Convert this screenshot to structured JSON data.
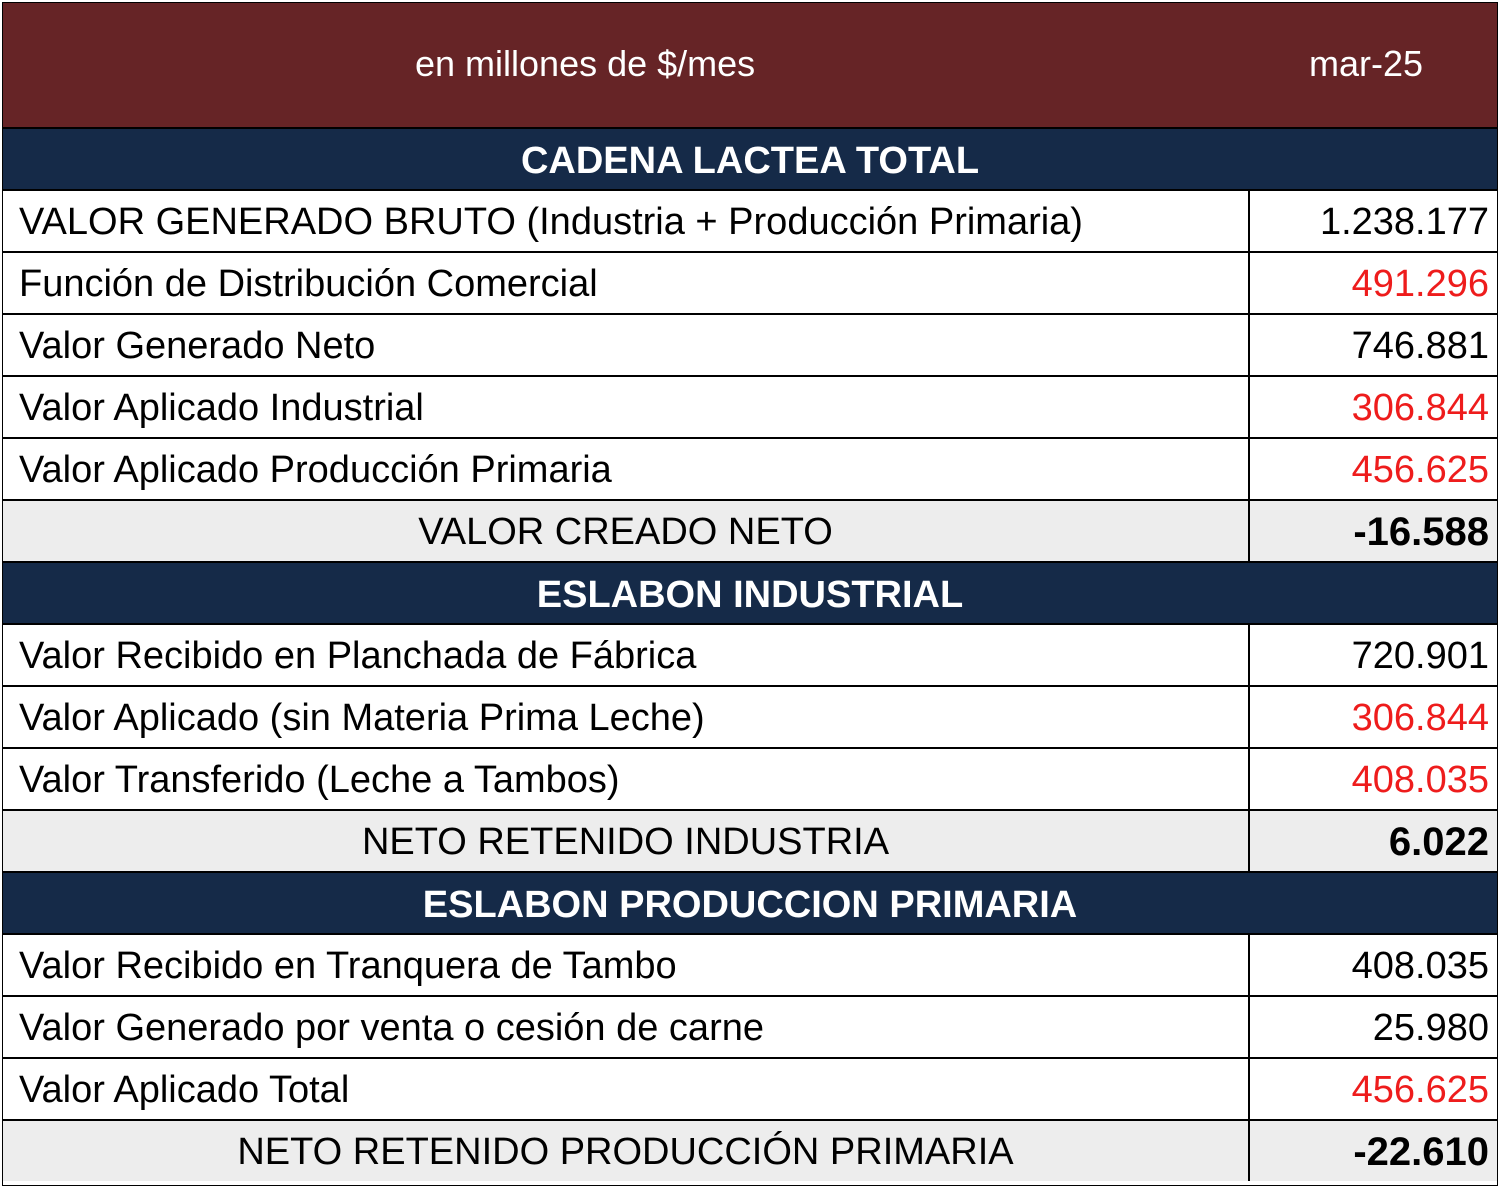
{
  "header": {
    "unit_label": "en millones de $/mes",
    "period": "mar-25"
  },
  "colors": {
    "header_bg": "#662426",
    "section_bg": "#152a48",
    "negative_value": "#ee1c1c",
    "total_row_bg": "#ededed"
  },
  "sections": [
    {
      "title": "CADENA  LACTEA  TOTAL",
      "rows": [
        {
          "label": "VALOR GENERADO BRUTO (Industria + Producción Primaria)",
          "value": "1.238.177"
        },
        {
          "label": "Función de Distribución Comercial",
          "value": "491.296"
        },
        {
          "label": "Valor Generado Neto",
          "value": "746.881"
        },
        {
          "label": "Valor Aplicado Industrial",
          "value": "306.844"
        },
        {
          "label": "Valor Aplicado Producción Primaria",
          "value": "456.625"
        },
        {
          "label": "VALOR CREADO NETO",
          "value": "-16.588"
        }
      ]
    },
    {
      "title": "ESLABON  INDUSTRIAL",
      "rows": [
        {
          "label": "Valor Recibido en Planchada de Fábrica",
          "value": "720.901"
        },
        {
          "label": "Valor Aplicado (sin Materia Prima Leche)",
          "value": "306.844"
        },
        {
          "label": "Valor Transferido (Leche a Tambos)",
          "value": "408.035"
        },
        {
          "label": "NETO RETENIDO INDUSTRIA",
          "value": "6.022"
        }
      ]
    },
    {
      "title": "ESLABON  PRODUCCION  PRIMARIA",
      "rows": [
        {
          "label": "Valor Recibido en Tranquera de Tambo",
          "value": "408.035"
        },
        {
          "label": "Valor Generado por venta o cesión de carne",
          "value": "25.980"
        },
        {
          "label": "Valor Aplicado  Total",
          "value": "456.625"
        },
        {
          "label": "NETO RETENIDO PRODUCCIÓN PRIMARIA",
          "value": "-22.610"
        }
      ]
    }
  ]
}
